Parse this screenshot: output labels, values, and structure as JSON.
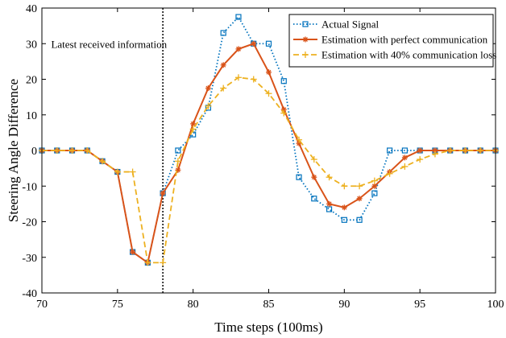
{
  "chart_data": {
    "type": "line",
    "title": "",
    "xlabel": "Time steps (100ms)",
    "ylabel": "Steering Angle Difference",
    "xlim": [
      70,
      100
    ],
    "ylim": [
      -40,
      40
    ],
    "xticks": [
      70,
      75,
      80,
      85,
      90,
      95,
      100
    ],
    "yticks": [
      -40,
      -30,
      -20,
      -10,
      0,
      10,
      20,
      30,
      40
    ],
    "grid": false,
    "legend_position": "top-right",
    "annotation": {
      "text": "Latest received information",
      "x": 78
    },
    "series": [
      {
        "name": "Actual Signal",
        "color": "#0072BD",
        "line_style": "dotted",
        "marker": "square",
        "points": [
          [
            70,
            0
          ],
          [
            71,
            0
          ],
          [
            72,
            0
          ],
          [
            73,
            0
          ],
          [
            74,
            -3
          ],
          [
            75,
            -6
          ],
          [
            76,
            -28.5
          ],
          [
            77,
            -31.5
          ],
          [
            78,
            -12
          ],
          [
            79,
            0
          ],
          [
            80,
            4.5
          ],
          [
            81,
            12
          ],
          [
            82,
            33
          ],
          [
            83,
            37.5
          ],
          [
            84,
            30
          ],
          [
            85,
            30
          ],
          [
            86,
            19.5
          ],
          [
            87,
            -7.5
          ],
          [
            88,
            -13.5
          ],
          [
            89,
            -16.5
          ],
          [
            90,
            -19.5
          ],
          [
            91,
            -19.5
          ],
          [
            92,
            -12
          ],
          [
            93,
            0
          ],
          [
            94,
            0
          ],
          [
            95,
            0
          ],
          [
            96,
            0
          ],
          [
            97,
            0
          ],
          [
            98,
            0
          ],
          [
            99,
            0
          ],
          [
            100,
            0
          ]
        ]
      },
      {
        "name": "Estimation with perfect communication",
        "color": "#D95319",
        "line_style": "solid",
        "marker": "star",
        "points": [
          [
            70,
            0
          ],
          [
            71,
            0
          ],
          [
            72,
            0
          ],
          [
            73,
            0
          ],
          [
            74,
            -3
          ],
          [
            75,
            -6
          ],
          [
            76,
            -28.5
          ],
          [
            77,
            -31.5
          ],
          [
            78,
            -12
          ],
          [
            79,
            -5.5
          ],
          [
            80,
            7.5
          ],
          [
            81,
            17.5
          ],
          [
            82,
            24
          ],
          [
            83,
            28.5
          ],
          [
            84,
            30
          ],
          [
            85,
            22
          ],
          [
            86,
            11.5
          ],
          [
            87,
            2
          ],
          [
            88,
            -7.5
          ],
          [
            89,
            -15
          ],
          [
            90,
            -16
          ],
          [
            91,
            -13.5
          ],
          [
            92,
            -10
          ],
          [
            93,
            -6
          ],
          [
            94,
            -2
          ],
          [
            95,
            0
          ],
          [
            96,
            0
          ],
          [
            97,
            0
          ],
          [
            98,
            0
          ],
          [
            99,
            0
          ],
          [
            100,
            0
          ]
        ]
      },
      {
        "name": "Estimation with 40% communication loss",
        "color": "#EDB120",
        "line_style": "dashed",
        "marker": "plus",
        "points": [
          [
            70,
            0
          ],
          [
            71,
            0
          ],
          [
            72,
            0
          ],
          [
            73,
            0
          ],
          [
            74,
            -3
          ],
          [
            75,
            -6
          ],
          [
            76,
            -6
          ],
          [
            77,
            -31.5
          ],
          [
            78,
            -31.5
          ],
          [
            79,
            -3
          ],
          [
            80,
            6
          ],
          [
            81,
            12.5
          ],
          [
            82,
            17.5
          ],
          [
            83,
            20.5
          ],
          [
            84,
            20
          ],
          [
            85,
            16
          ],
          [
            86,
            10.5
          ],
          [
            87,
            3
          ],
          [
            88,
            -2.5
          ],
          [
            89,
            -7.5
          ],
          [
            90,
            -10
          ],
          [
            91,
            -10
          ],
          [
            92,
            -8.5
          ],
          [
            93,
            -6.5
          ],
          [
            94,
            -4.5
          ],
          [
            95,
            -2.5
          ],
          [
            96,
            -1
          ],
          [
            97,
            0
          ],
          [
            98,
            0
          ],
          [
            99,
            0
          ],
          [
            100,
            0
          ]
        ]
      }
    ]
  }
}
